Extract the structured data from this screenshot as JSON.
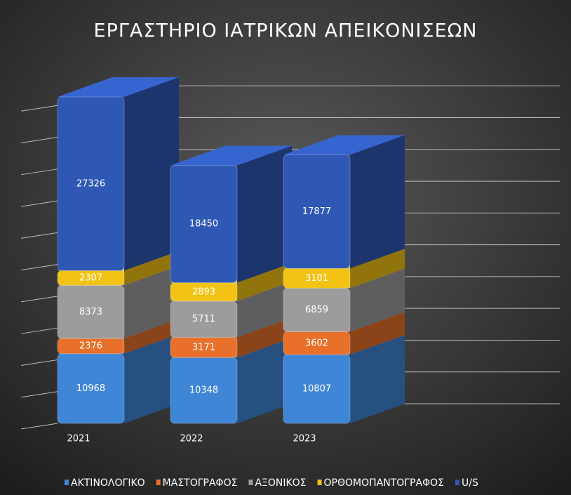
{
  "chart_data": {
    "type": "bar",
    "stacked": true,
    "title": "ΕΡΓΑΣΤΗΡΙΟ ΙΑΤΡΙΚΩΝ ΑΠΕΙΚΟΝΙΣΕΩΝ",
    "categories": [
      "2021",
      "2022",
      "2023"
    ],
    "series": [
      {
        "name": "ΑΚΤΙΝΟΛΟΓΙΚΟ",
        "color": "#3f86d6",
        "values": [
          10968,
          10348,
          10807
        ]
      },
      {
        "name": "ΜΑΣΤΟΓΡΑΦΟΣ",
        "color": "#e8702a",
        "values": [
          2376,
          3171,
          3602
        ]
      },
      {
        "name": "ΑΞΟΝΙΚΟΣ",
        "color": "#9c9c9c",
        "values": [
          8373,
          5711,
          6859
        ]
      },
      {
        "name": "ΟΡΘΟΜΟΠΑΝΤΟΓΡΑΦΟΣ",
        "color": "#f2c314",
        "values": [
          2307,
          2893,
          3101
        ]
      },
      {
        "name": "U/S",
        "color": "#2f58b5",
        "values": [
          27326,
          18450,
          17877
        ]
      }
    ],
    "ylim": [
      0,
      55000
    ],
    "yticks": [
      0,
      5000,
      10000,
      15000,
      20000,
      25000,
      30000,
      35000,
      40000,
      45000,
      50000
    ],
    "grid": true,
    "legend": "bottom"
  }
}
